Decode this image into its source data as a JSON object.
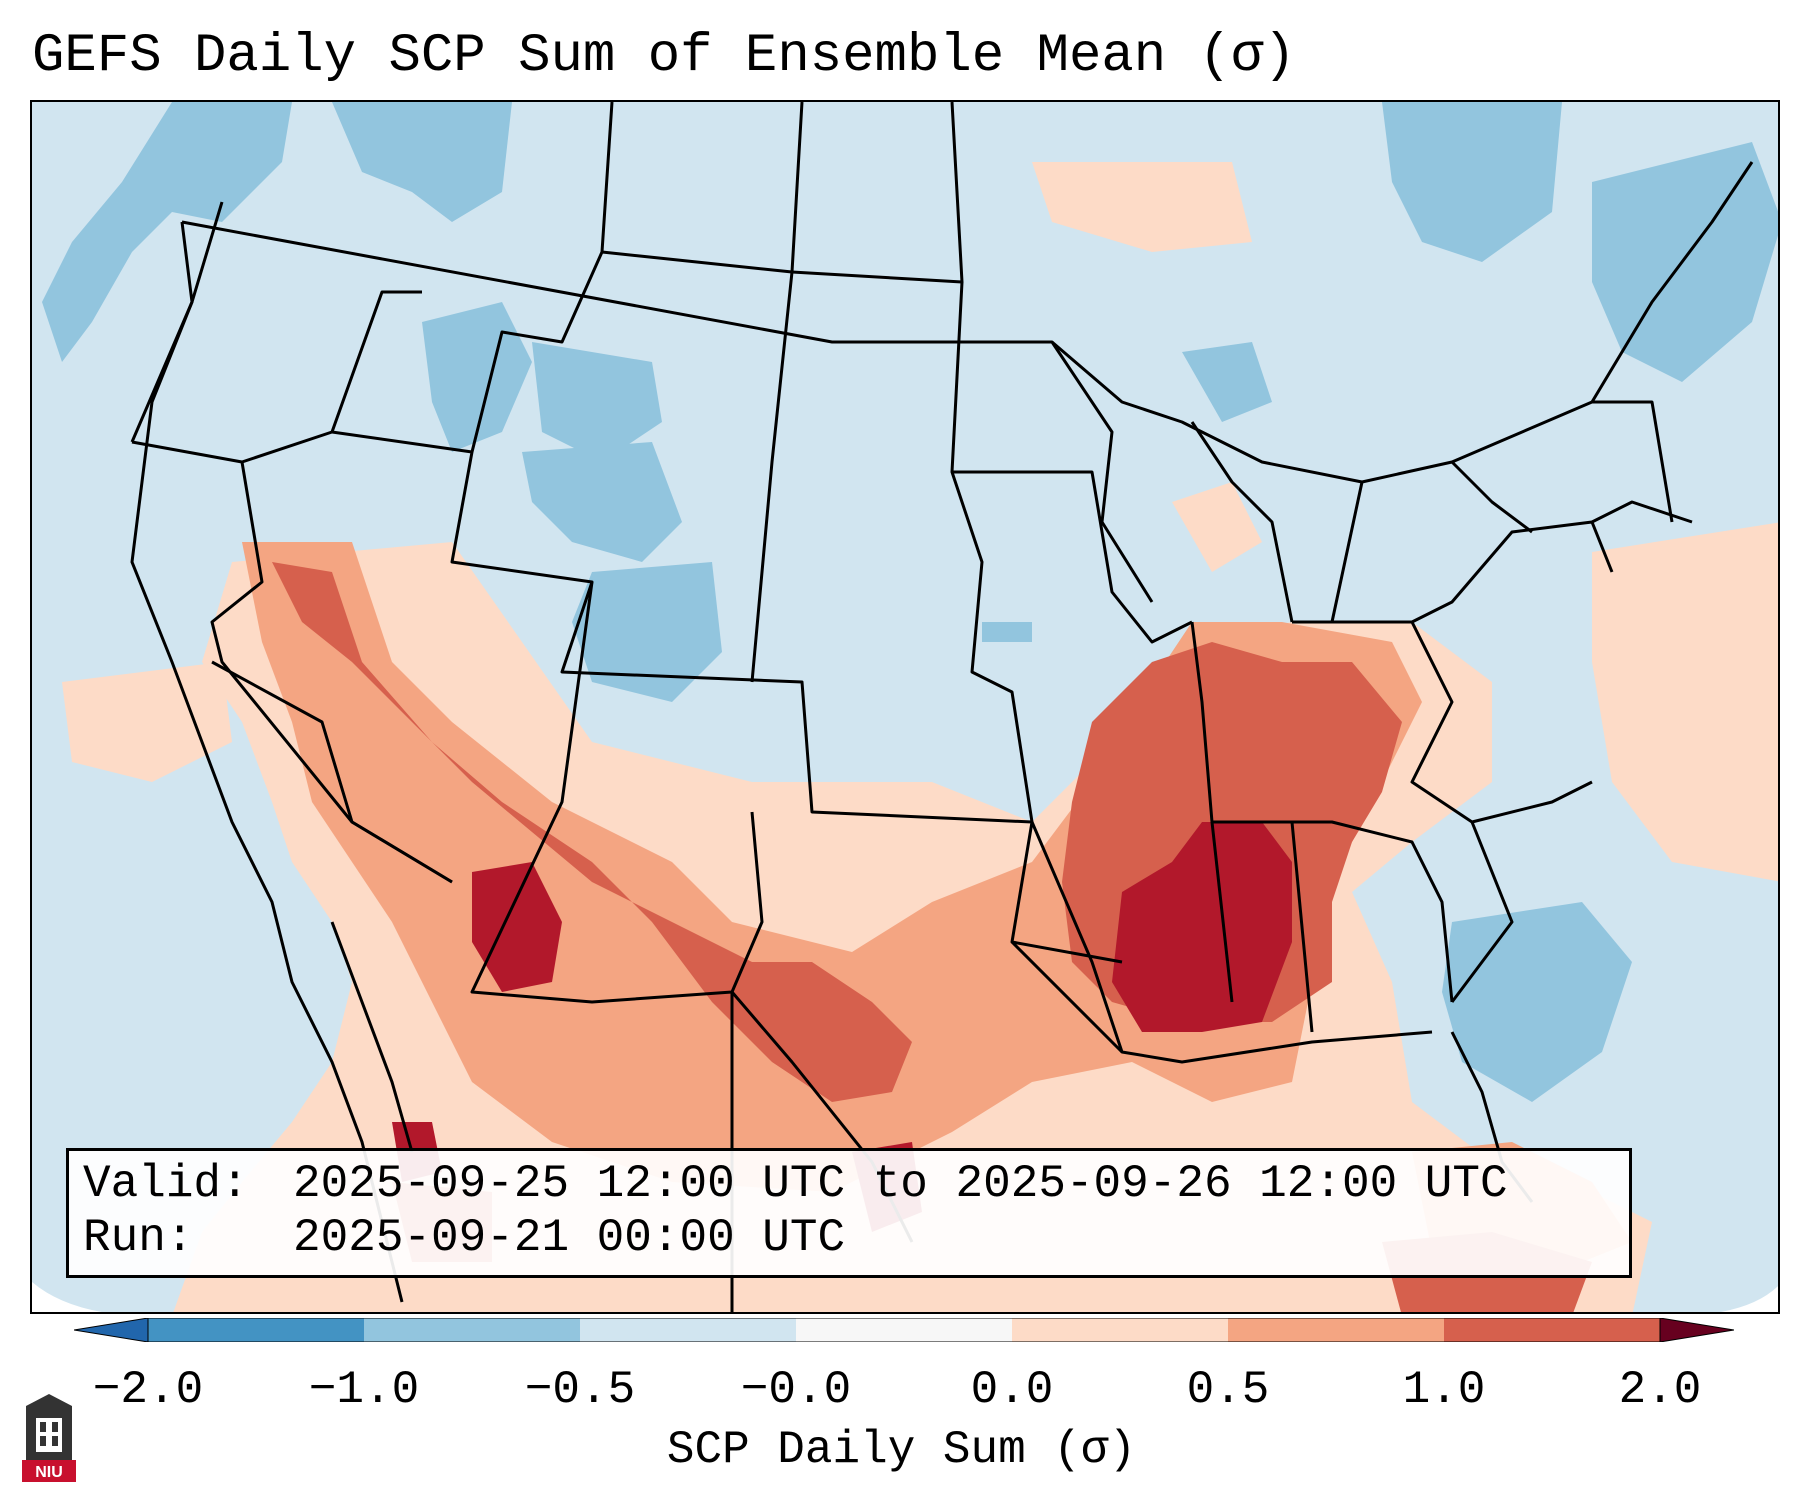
{
  "title": "GEFS Daily SCP Sum of Ensemble Mean (σ)",
  "info": {
    "valid_label": "Valid:",
    "valid_value": "2025-09-25 12:00 UTC to 2025-09-26 12:00 UTC",
    "run_label": "Run:",
    "run_value": "2025-09-21 00:00 UTC"
  },
  "colorbar": {
    "label": "SCP Daily Sum (σ)",
    "ticks": [
      "−2.0",
      "−1.0",
      "−0.5",
      "−0.0",
      "0.0",
      "0.5",
      "1.0",
      "2.0"
    ],
    "colors": [
      "#4393c3",
      "#92c5de",
      "#d1e5f0",
      "#f7f7f7",
      "#fddbc7",
      "#f4a582",
      "#d6604d",
      "#b2182b"
    ],
    "under_color": "#2166ac",
    "over_color": "#67001f"
  },
  "logo": {
    "text": "NIU",
    "color": "#c8102e"
  }
}
